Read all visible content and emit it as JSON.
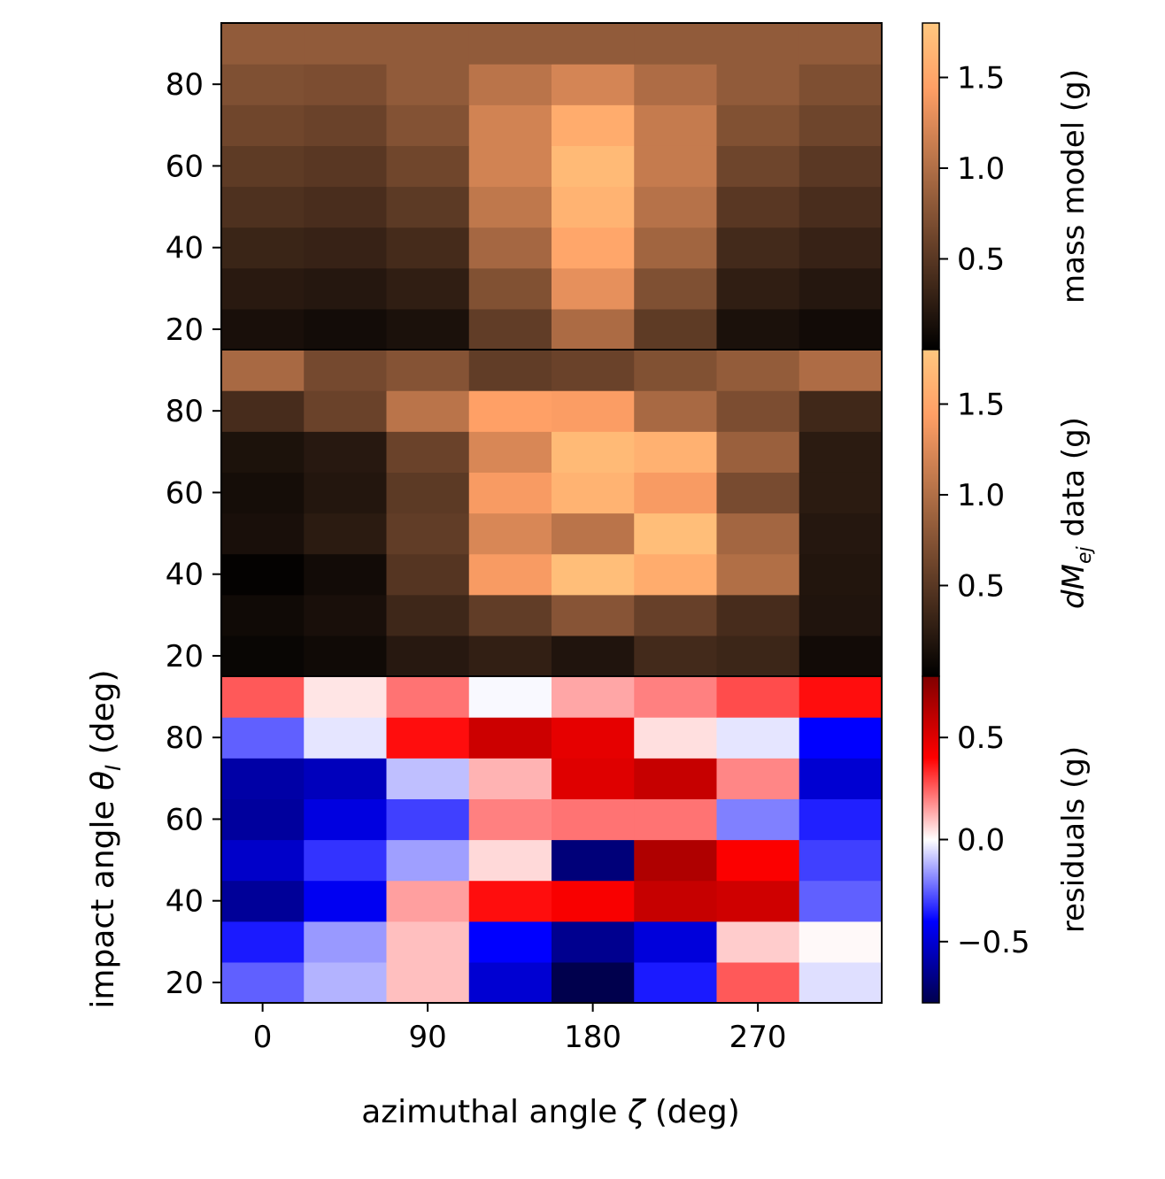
{
  "chart_data": {
    "type": "heatmap",
    "x_label_prefix": "azimuthal angle ",
    "x_label_symbol": "ζ",
    "x_label_suffix": " (deg)",
    "y_label_prefix": "impact angle ",
    "y_label_symbol": "θ",
    "y_label_subscript": "I",
    "y_label_suffix": " (deg)",
    "x_range": [
      -22.5,
      337.5
    ],
    "x_ticks": [
      0,
      90,
      180,
      270
    ],
    "x_bin_width": 45,
    "x_bins": [
      0,
      45,
      90,
      135,
      180,
      225,
      270,
      315
    ],
    "y_range": [
      15,
      95
    ],
    "y_ticks": [
      20,
      40,
      60,
      80
    ],
    "y_bin_width": 10,
    "y_bins": [
      20,
      30,
      40,
      50,
      60,
      70,
      80,
      90
    ],
    "panels": [
      {
        "name": "mass model",
        "colorbar_label": "mass model (g)",
        "colormap": "copper",
        "vmin": 0.0,
        "vmax": 1.8,
        "colorbar_ticks": [
          0.5,
          1.0,
          1.5
        ],
        "colorbar_tick_labels": [
          "0.5",
          "1.0",
          "1.5"
        ],
        "values": [
          [
            0.14,
            0.11,
            0.15,
            0.55,
            0.97,
            0.53,
            0.15,
            0.1
          ],
          [
            0.23,
            0.21,
            0.27,
            0.73,
            1.3,
            0.72,
            0.27,
            0.21
          ],
          [
            0.33,
            0.31,
            0.39,
            0.93,
            1.5,
            0.91,
            0.38,
            0.31
          ],
          [
            0.44,
            0.41,
            0.52,
            1.08,
            1.62,
            1.03,
            0.5,
            0.41
          ],
          [
            0.53,
            0.5,
            0.63,
            1.18,
            1.68,
            1.11,
            0.62,
            0.51
          ],
          [
            0.63,
            0.6,
            0.74,
            1.18,
            1.55,
            1.11,
            0.73,
            0.62
          ],
          [
            0.72,
            0.7,
            0.82,
            1.05,
            1.2,
            0.98,
            0.82,
            0.71
          ],
          [
            0.82,
            0.82,
            0.82,
            0.82,
            0.82,
            0.82,
            0.82,
            0.82
          ]
        ]
      },
      {
        "name": "dMej data",
        "colorbar_label_symbol": "dM",
        "colorbar_label_subscript": "ej",
        "colorbar_label_suffix": " data (g)",
        "colormap": "copper",
        "vmin": 0.0,
        "vmax": 1.8,
        "colorbar_ticks": [
          0.5,
          1.0,
          1.5
        ],
        "colorbar_tick_labels": [
          "0.5",
          "1.0",
          "1.5"
        ],
        "values": [
          [
            0.05,
            0.09,
            0.22,
            0.28,
            0.18,
            0.38,
            0.34,
            0.1
          ],
          [
            0.09,
            0.14,
            0.35,
            0.55,
            0.76,
            0.58,
            0.4,
            0.18
          ],
          [
            0.02,
            0.1,
            0.48,
            1.4,
            1.72,
            1.55,
            1.0,
            0.19
          ],
          [
            0.14,
            0.24,
            0.55,
            1.22,
            1.05,
            1.72,
            0.92,
            0.21
          ],
          [
            0.12,
            0.2,
            0.52,
            1.4,
            1.62,
            1.4,
            0.68,
            0.24
          ],
          [
            0.16,
            0.22,
            0.6,
            1.22,
            1.68,
            1.6,
            0.87,
            0.24
          ],
          [
            0.4,
            0.6,
            1.05,
            1.45,
            1.42,
            0.95,
            0.7,
            0.36
          ],
          [
            0.95,
            0.66,
            0.75,
            0.55,
            0.6,
            0.73,
            0.83,
            0.98
          ]
        ]
      },
      {
        "name": "residuals",
        "colorbar_label": "residuals (g)",
        "colormap": "seismic",
        "vmin": -0.8,
        "vmax": 0.8,
        "colorbar_ticks": [
          -0.5,
          0.0,
          0.5
        ],
        "colorbar_tick_labels": [
          "−0.5",
          "0.0",
          "0.5"
        ],
        "values": [
          [
            -0.25,
            -0.12,
            0.1,
            -0.5,
            -0.8,
            -0.36,
            0.26,
            -0.05
          ],
          [
            -0.36,
            -0.16,
            0.1,
            -0.4,
            -0.65,
            -0.48,
            0.08,
            0.01
          ],
          [
            -0.63,
            -0.43,
            0.15,
            0.38,
            0.42,
            0.58,
            0.55,
            -0.25
          ],
          [
            -0.52,
            -0.32,
            -0.15,
            0.06,
            -0.7,
            0.65,
            0.41,
            -0.3
          ],
          [
            -0.62,
            -0.47,
            -0.3,
            0.2,
            0.22,
            0.22,
            -0.2,
            -0.35
          ],
          [
            -0.6,
            -0.55,
            -0.1,
            0.12,
            0.5,
            0.58,
            0.19,
            -0.5
          ],
          [
            -0.25,
            -0.04,
            0.38,
            0.56,
            0.48,
            0.05,
            -0.04,
            -0.4
          ],
          [
            0.26,
            0.04,
            0.22,
            -0.01,
            0.14,
            0.2,
            0.28,
            0.38
          ]
        ]
      }
    ]
  }
}
